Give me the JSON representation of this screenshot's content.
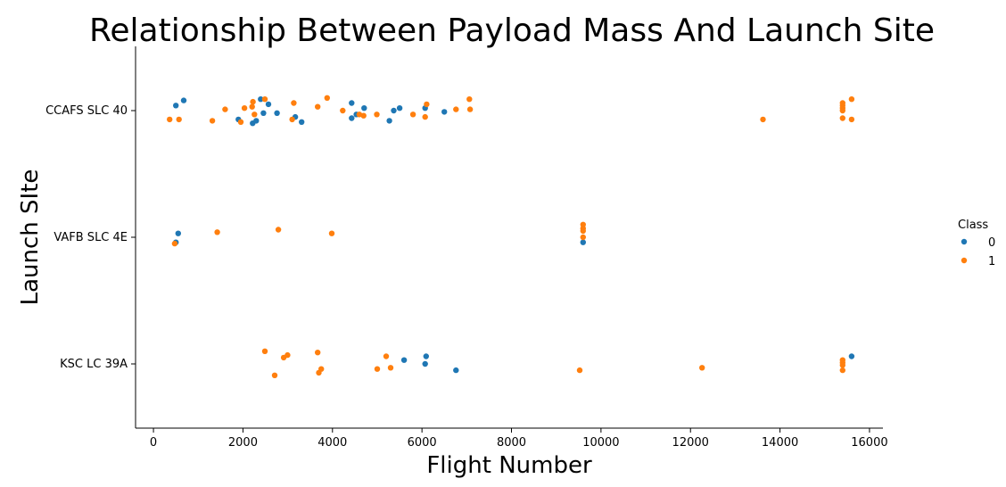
{
  "chart_data": {
    "type": "scatter",
    "title": "Relationship Between Payload Mass And Launch Site",
    "xlabel": "Flight Number",
    "ylabel": "Launch SIte",
    "xlim": [
      -400,
      16300
    ],
    "xticks": [
      0,
      2000,
      4000,
      6000,
      8000,
      10000,
      12000,
      14000,
      16000
    ],
    "xtick_labels": [
      "0",
      "2000",
      "4000",
      "6000",
      "8000",
      "10000",
      "12000",
      "14000",
      "16000"
    ],
    "categories": [
      "CCAFS SLC 40",
      "VAFB SLC 4E",
      "KSC LC 39A"
    ],
    "grid": false,
    "legend": {
      "title": "Class",
      "placement": "right"
    },
    "series": [
      {
        "name": "0",
        "color": "#1f77b4",
        "points": [
          {
            "x": 500,
            "site": "CCAFS SLC 40",
            "jitter": 0.04
          },
          {
            "x": 677,
            "site": "CCAFS SLC 40",
            "jitter": 0.08
          },
          {
            "x": 1898,
            "site": "CCAFS SLC 40",
            "jitter": -0.07
          },
          {
            "x": 2216,
            "site": "CCAFS SLC 40",
            "jitter": -0.1
          },
          {
            "x": 2296,
            "site": "CCAFS SLC 40",
            "jitter": -0.08
          },
          {
            "x": 2395,
            "site": "CCAFS SLC 40",
            "jitter": 0.09
          },
          {
            "x": 2457,
            "site": "CCAFS SLC 40",
            "jitter": -0.02
          },
          {
            "x": 2570,
            "site": "CCAFS SLC 40",
            "jitter": 0.05
          },
          {
            "x": 2760,
            "site": "CCAFS SLC 40",
            "jitter": -0.02
          },
          {
            "x": 3170,
            "site": "CCAFS SLC 40",
            "jitter": -0.05
          },
          {
            "x": 3310,
            "site": "CCAFS SLC 40",
            "jitter": -0.09
          },
          {
            "x": 4428,
            "site": "CCAFS SLC 40",
            "jitter": 0.06
          },
          {
            "x": 4428,
            "site": "CCAFS SLC 40",
            "jitter": -0.06
          },
          {
            "x": 4535,
            "site": "CCAFS SLC 40",
            "jitter": -0.03
          },
          {
            "x": 4707,
            "site": "CCAFS SLC 40",
            "jitter": 0.02
          },
          {
            "x": 5271,
            "site": "CCAFS SLC 40",
            "jitter": -0.08
          },
          {
            "x": 5370,
            "site": "CCAFS SLC 40",
            "jitter": 0.0
          },
          {
            "x": 5500,
            "site": "CCAFS SLC 40",
            "jitter": 0.02
          },
          {
            "x": 6070,
            "site": "CCAFS SLC 40",
            "jitter": 0.02
          },
          {
            "x": 6500,
            "site": "CCAFS SLC 40",
            "jitter": -0.01
          },
          {
            "x": 500,
            "site": "VAFB SLC 4E",
            "jitter": -0.04
          },
          {
            "x": 553,
            "site": "VAFB SLC 4E",
            "jitter": 0.03
          },
          {
            "x": 9600,
            "site": "VAFB SLC 4E",
            "jitter": -0.04
          },
          {
            "x": 5600,
            "site": "KSC LC 39A",
            "jitter": 0.03
          },
          {
            "x": 6070,
            "site": "KSC LC 39A",
            "jitter": 0.0
          },
          {
            "x": 6092,
            "site": "KSC LC 39A",
            "jitter": 0.06
          },
          {
            "x": 6761,
            "site": "KSC LC 39A",
            "jitter": -0.05
          },
          {
            "x": 15600,
            "site": "KSC LC 39A",
            "jitter": 0.06
          }
        ]
      },
      {
        "name": "1",
        "color": "#ff7f0e",
        "points": [
          {
            "x": 362,
            "site": "CCAFS SLC 40",
            "jitter": -0.07
          },
          {
            "x": 570,
            "site": "CCAFS SLC 40",
            "jitter": -0.07
          },
          {
            "x": 1316,
            "site": "CCAFS SLC 40",
            "jitter": -0.08
          },
          {
            "x": 1600,
            "site": "CCAFS SLC 40",
            "jitter": 0.01
          },
          {
            "x": 1952,
            "site": "CCAFS SLC 40",
            "jitter": -0.09
          },
          {
            "x": 2034,
            "site": "CCAFS SLC 40",
            "jitter": 0.02
          },
          {
            "x": 2205,
            "site": "CCAFS SLC 40",
            "jitter": 0.03
          },
          {
            "x": 2222,
            "site": "CCAFS SLC 40",
            "jitter": 0.07
          },
          {
            "x": 2257,
            "site": "CCAFS SLC 40",
            "jitter": -0.03
          },
          {
            "x": 2490,
            "site": "CCAFS SLC 40",
            "jitter": 0.09
          },
          {
            "x": 3100,
            "site": "CCAFS SLC 40",
            "jitter": -0.07
          },
          {
            "x": 3136,
            "site": "CCAFS SLC 40",
            "jitter": 0.06
          },
          {
            "x": 3669,
            "site": "CCAFS SLC 40",
            "jitter": 0.03
          },
          {
            "x": 3880,
            "site": "CCAFS SLC 40",
            "jitter": 0.1
          },
          {
            "x": 4230,
            "site": "CCAFS SLC 40",
            "jitter": 0.0
          },
          {
            "x": 4600,
            "site": "CCAFS SLC 40",
            "jitter": -0.03
          },
          {
            "x": 4696,
            "site": "CCAFS SLC 40",
            "jitter": -0.04
          },
          {
            "x": 4990,
            "site": "CCAFS SLC 40",
            "jitter": -0.03
          },
          {
            "x": 5800,
            "site": "CCAFS SLC 40",
            "jitter": -0.03
          },
          {
            "x": 6070,
            "site": "CCAFS SLC 40",
            "jitter": -0.05
          },
          {
            "x": 6104,
            "site": "CCAFS SLC 40",
            "jitter": 0.05
          },
          {
            "x": 6761,
            "site": "CCAFS SLC 40",
            "jitter": 0.01
          },
          {
            "x": 7060,
            "site": "CCAFS SLC 40",
            "jitter": 0.09
          },
          {
            "x": 7076,
            "site": "CCAFS SLC 40",
            "jitter": 0.01
          },
          {
            "x": 13620,
            "site": "CCAFS SLC 40",
            "jitter": -0.07
          },
          {
            "x": 15400,
            "site": "CCAFS SLC 40",
            "jitter": 0.06
          },
          {
            "x": 15400,
            "site": "CCAFS SLC 40",
            "jitter": 0.04
          },
          {
            "x": 15400,
            "site": "CCAFS SLC 40",
            "jitter": 0.02
          },
          {
            "x": 15400,
            "site": "CCAFS SLC 40",
            "jitter": 0.0
          },
          {
            "x": 15400,
            "site": "CCAFS SLC 40",
            "jitter": -0.06
          },
          {
            "x": 15600,
            "site": "CCAFS SLC 40",
            "jitter": 0.09
          },
          {
            "x": 15600,
            "site": "CCAFS SLC 40",
            "jitter": -0.07
          },
          {
            "x": 475,
            "site": "VAFB SLC 4E",
            "jitter": -0.05
          },
          {
            "x": 1425,
            "site": "VAFB SLC 4E",
            "jitter": 0.04
          },
          {
            "x": 2790,
            "site": "VAFB SLC 4E",
            "jitter": 0.06
          },
          {
            "x": 3985,
            "site": "VAFB SLC 4E",
            "jitter": 0.03
          },
          {
            "x": 9600,
            "site": "VAFB SLC 4E",
            "jitter": 0.1
          },
          {
            "x": 9600,
            "site": "VAFB SLC 4E",
            "jitter": 0.07
          },
          {
            "x": 9600,
            "site": "VAFB SLC 4E",
            "jitter": 0.05
          },
          {
            "x": 9600,
            "site": "VAFB SLC 4E",
            "jitter": 0.0
          },
          {
            "x": 2490,
            "site": "KSC LC 39A",
            "jitter": 0.1
          },
          {
            "x": 2708,
            "site": "KSC LC 39A",
            "jitter": -0.09
          },
          {
            "x": 2910,
            "site": "KSC LC 39A",
            "jitter": 0.05
          },
          {
            "x": 2995,
            "site": "KSC LC 39A",
            "jitter": 0.07
          },
          {
            "x": 3669,
            "site": "KSC LC 39A",
            "jitter": 0.09
          },
          {
            "x": 3696,
            "site": "KSC LC 39A",
            "jitter": -0.07
          },
          {
            "x": 3750,
            "site": "KSC LC 39A",
            "jitter": -0.04
          },
          {
            "x": 5000,
            "site": "KSC LC 39A",
            "jitter": -0.04
          },
          {
            "x": 5200,
            "site": "KSC LC 39A",
            "jitter": 0.06
          },
          {
            "x": 5300,
            "site": "KSC LC 39A",
            "jitter": -0.03
          },
          {
            "x": 9525,
            "site": "KSC LC 39A",
            "jitter": -0.05
          },
          {
            "x": 12259,
            "site": "KSC LC 39A",
            "jitter": -0.03
          },
          {
            "x": 15400,
            "site": "KSC LC 39A",
            "jitter": 0.03
          },
          {
            "x": 15400,
            "site": "KSC LC 39A",
            "jitter": 0.01
          },
          {
            "x": 15400,
            "site": "KSC LC 39A",
            "jitter": -0.01
          },
          {
            "x": 15400,
            "site": "KSC LC 39A",
            "jitter": -0.05
          }
        ]
      }
    ]
  }
}
